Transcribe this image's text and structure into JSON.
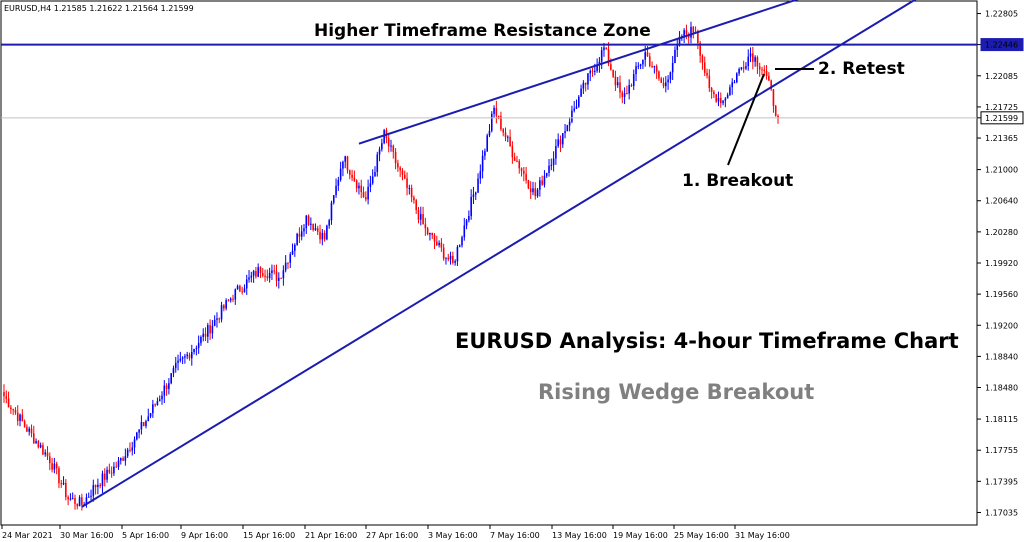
{
  "header": {
    "symbol_text": "EURUSD,H4  1.21585 1.21622 1.21564 1.21599"
  },
  "annotations": {
    "zone_label": "Higher Timeframe Resistance Zone",
    "breakout_label": "1. Breakout",
    "retest_label": "2. Retest",
    "title": "EURUSD Analysis: 4-hour Timeframe Chart",
    "subtitle": "Rising Wedge Breakout"
  },
  "colors": {
    "bull": "#0000ff",
    "bear": "#ff0000",
    "line": "#1c1cb0",
    "resistance_box": "#1c1cb0",
    "current_line": "#c0c0c0"
  },
  "chart_data": {
    "type": "candlestick",
    "symbol": "EURUSD",
    "timeframe": "H4",
    "ohlc_last": {
      "open": 1.21585,
      "high": 1.21622,
      "low": 1.21564,
      "close": 1.21599
    },
    "ylim": [
      1.1689,
      1.2295
    ],
    "y_ticks": [
      "1.22805",
      "1.22446",
      "1.22085",
      "1.21725",
      "1.21599",
      "1.21365",
      "1.21000",
      "1.20640",
      "1.20280",
      "1.19920",
      "1.19560",
      "1.19200",
      "1.18840",
      "1.18480",
      "1.18115",
      "1.17755",
      "1.17395",
      "1.17035"
    ],
    "x_ticks": [
      "24 Mar 2021",
      "30 Mar 16:00",
      "5 Apr 16:00",
      "9 Apr 16:00",
      "15 Apr 16:00",
      "21 Apr 16:00",
      "27 Apr 16:00",
      "3 May 16:00",
      "7 May 16:00",
      "13 May 16:00",
      "19 May 16:00",
      "25 May 16:00",
      "31 May 16:00"
    ],
    "key_path": [
      [
        0,
        1.1838
      ],
      [
        10,
        1.18
      ],
      [
        20,
        1.1765
      ],
      [
        28,
        1.172
      ],
      [
        34,
        1.1713
      ],
      [
        40,
        1.1735
      ],
      [
        50,
        1.176
      ],
      [
        62,
        1.181
      ],
      [
        75,
        1.187
      ],
      [
        88,
        1.191
      ],
      [
        100,
        1.1955
      ],
      [
        112,
        1.1985
      ],
      [
        120,
        1.1975
      ],
      [
        132,
        1.2045
      ],
      [
        140,
        1.202
      ],
      [
        148,
        1.2115
      ],
      [
        158,
        1.2065
      ],
      [
        166,
        1.214
      ],
      [
        174,
        1.209
      ],
      [
        184,
        1.203
      ],
      [
        196,
        1.199
      ],
      [
        206,
        1.208
      ],
      [
        214,
        1.217
      ],
      [
        222,
        1.212
      ],
      [
        232,
        1.207
      ],
      [
        242,
        1.213
      ],
      [
        254,
        1.22
      ],
      [
        262,
        1.224
      ],
      [
        270,
        1.218
      ],
      [
        280,
        1.2235
      ],
      [
        288,
        1.2195
      ],
      [
        296,
        1.2255
      ],
      [
        302,
        1.2262
      ],
      [
        308,
        1.219
      ],
      [
        314,
        1.218
      ],
      [
        320,
        1.221
      ],
      [
        326,
        1.2235
      ],
      [
        332,
        1.2215
      ],
      [
        338,
        1.216
      ]
    ],
    "support_line": {
      "from": [
        1.171,
        34
      ],
      "to": [
        1.23,
        400
      ]
    },
    "upper_line": {
      "from": [
        1.213,
        155
      ],
      "to": [
        1.23,
        350
      ]
    },
    "resistance_level": 1.22446,
    "current_price": 1.21599
  }
}
